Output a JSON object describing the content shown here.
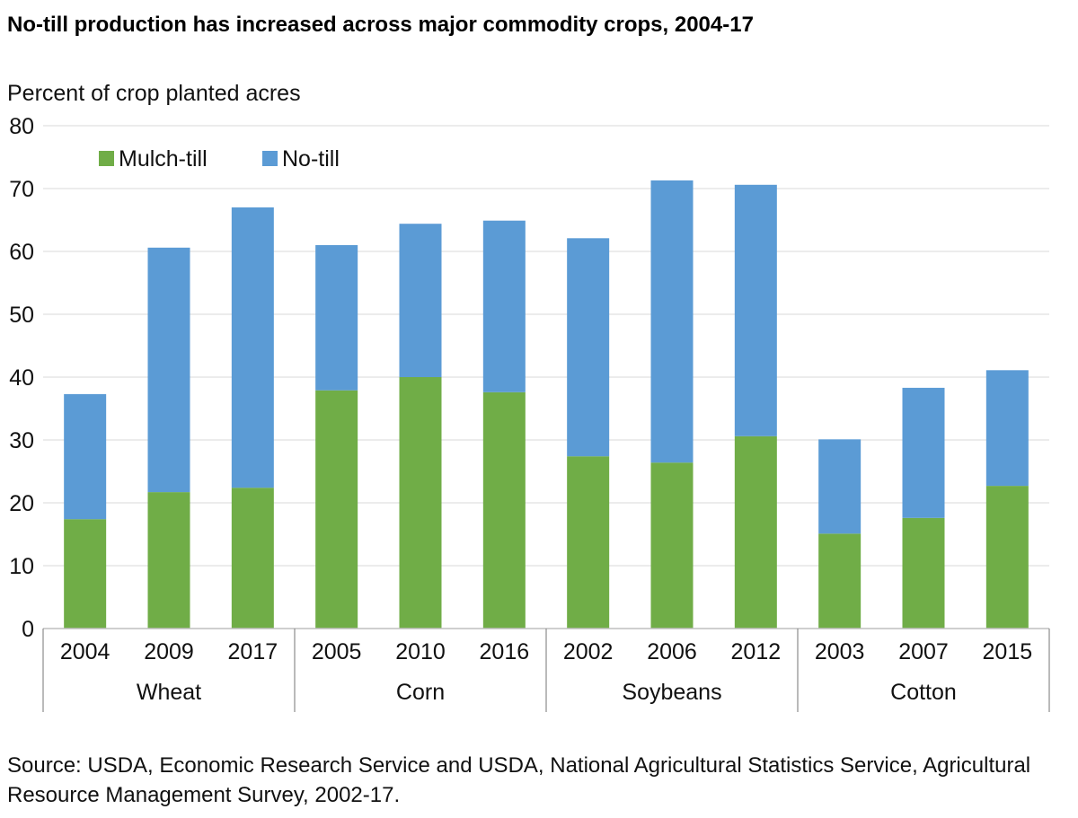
{
  "chart_data": {
    "type": "bar",
    "stacked": true,
    "title": "No-till production has increased across major commodity crops, 2004-17",
    "ylabel": "Percent of crop planted acres",
    "xlabel": "",
    "ylim": [
      0,
      80
    ],
    "yticks": [
      0,
      10,
      20,
      30,
      40,
      50,
      60,
      70,
      80
    ],
    "grid": true,
    "legend_placement": "top-left",
    "groups": [
      {
        "name": "Wheat",
        "categories": [
          "2004",
          "2009",
          "2017"
        ]
      },
      {
        "name": "Corn",
        "categories": [
          "2005",
          "2010",
          "2016"
        ]
      },
      {
        "name": "Soybeans",
        "categories": [
          "2002",
          "2006",
          "2012"
        ]
      },
      {
        "name": "Cotton",
        "categories": [
          "2003",
          "2007",
          "2015"
        ]
      }
    ],
    "categories": [
      "2004",
      "2009",
      "2017",
      "2005",
      "2010",
      "2016",
      "2002",
      "2006",
      "2012",
      "2003",
      "2007",
      "2015"
    ],
    "series": [
      {
        "name": "Mulch-till",
        "color": "#70AD47",
        "values": [
          17.4,
          21.7,
          22.4,
          37.9,
          40.0,
          37.6,
          27.4,
          26.4,
          30.6,
          15.1,
          17.6,
          22.7
        ]
      },
      {
        "name": "No-till",
        "color": "#5B9BD5",
        "values": [
          19.9,
          38.9,
          44.6,
          23.1,
          24.4,
          27.3,
          34.7,
          44.9,
          40.0,
          15.0,
          20.7,
          18.4
        ]
      }
    ],
    "source": "Source: USDA, Economic Research Service and USDA, National Agricultural Statistics Service, Agricultural Resource Management Survey, 2002-17."
  }
}
